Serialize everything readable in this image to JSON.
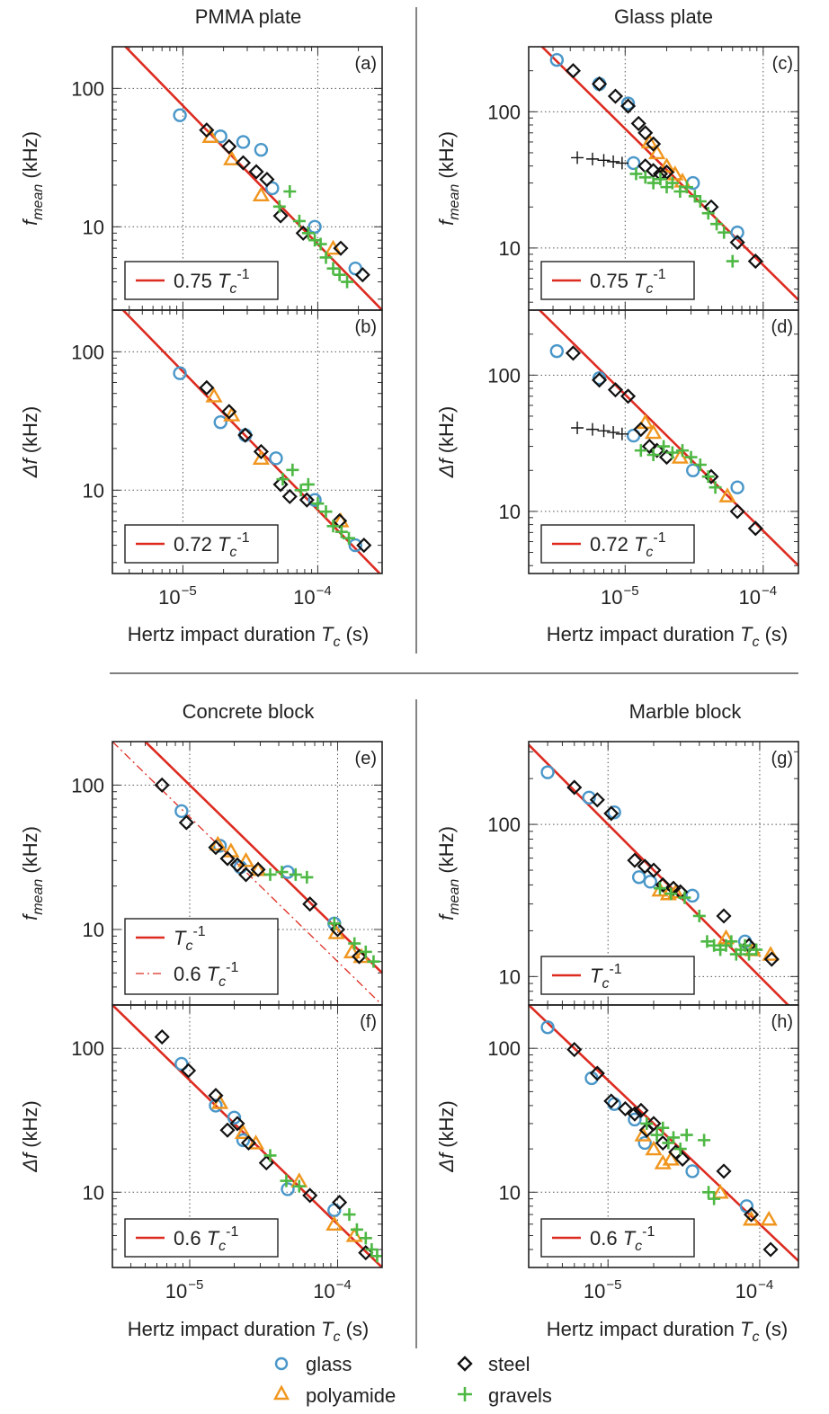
{
  "colors": {
    "glass": "#4a97c9",
    "polyamide": "#f0961e",
    "steel": "#111111",
    "gravels": "#4db843",
    "fit": "#dd2b20",
    "gravels_black": "#111111"
  },
  "figure": {
    "section_titles": [
      "PMMA plate",
      "Glass plate",
      "Concrete block",
      "Marble block"
    ],
    "x_axis_label": "Hertz impact duration",
    "x_axis_symbol": "T",
    "x_axis_subscript": "c",
    "x_axis_unit": "(s)",
    "x_tick_labels": [
      "10",
      "10"
    ],
    "x_tick_exponents": [
      "−5",
      "−4"
    ],
    "legend": {
      "glass": "glass",
      "polyamide": "polyamide",
      "steel": "steel",
      "gravels": "gravels"
    }
  },
  "chart_data": [
    {
      "type": "scatter",
      "panel": "(a)",
      "section": "PMMA plate",
      "ylabel_main": "f",
      "ylabel_sub": "mean",
      "ylabel_unit": "(kHz)",
      "xscale": "log",
      "yscale": "log",
      "xlim": [
        3e-06,
        0.0003
      ],
      "ylim": [
        2.5,
        200
      ],
      "y_ticks": [
        10,
        100
      ],
      "x_ticks": [
        1e-05,
        0.0001
      ],
      "grid": true,
      "fits": [
        {
          "coef": 0.75,
          "style": "solid",
          "label_coef": "0.75"
        }
      ],
      "series": [
        {
          "name": "glass",
          "x": [
            9.5e-06,
            1.9e-05,
            2.8e-05,
            3.8e-05,
            4.6e-05,
            9.5e-05,
            0.00019
          ],
          "y": [
            64,
            45,
            41,
            36,
            19,
            10,
            5
          ]
        },
        {
          "name": "polyamide",
          "x": [
            1.6e-05,
            2.3e-05,
            3.8e-05,
            0.00013
          ],
          "y": [
            45,
            31,
            17,
            7
          ]
        },
        {
          "name": "steel",
          "x": [
            1.5e-05,
            2.2e-05,
            2.8e-05,
            3.5e-05,
            4.2e-05,
            5.3e-05,
            7.8e-05,
            0.000148,
            0.000215
          ],
          "y": [
            50,
            38,
            29,
            25,
            22,
            12,
            9,
            7,
            4.5
          ]
        },
        {
          "name": "gravels",
          "x": [
            5.2e-05,
            6.2e-05,
            7.3e-05,
            8.5e-05,
            9.5e-05,
            0.000105,
            0.000115,
            0.00013,
            0.000145,
            0.000165
          ],
          "y": [
            14,
            18,
            11,
            9,
            8,
            7.5,
            6,
            5,
            4.5,
            4
          ]
        }
      ]
    },
    {
      "type": "scatter",
      "panel": "(b)",
      "section": "PMMA plate",
      "ylabel_main": "Δf",
      "ylabel_sub": "",
      "ylabel_unit": "(kHz)",
      "xscale": "log",
      "yscale": "log",
      "xlim": [
        3e-06,
        0.0003
      ],
      "ylim": [
        2.5,
        200
      ],
      "y_ticks": [
        10,
        100
      ],
      "x_ticks": [
        1e-05,
        0.0001
      ],
      "grid": true,
      "fits": [
        {
          "coef": 0.72,
          "style": "solid",
          "label_coef": "0.72"
        }
      ],
      "series": [
        {
          "name": "glass",
          "x": [
            9.5e-06,
            1.9e-05,
            2.9e-05,
            4.9e-05,
            9.5e-05,
            0.00019
          ],
          "y": [
            70,
            31,
            25,
            17,
            8.5,
            4
          ]
        },
        {
          "name": "polyamide",
          "x": [
            1.7e-05,
            2.3e-05,
            3.8e-05,
            0.000148
          ],
          "y": [
            48,
            35,
            17,
            6
          ]
        },
        {
          "name": "steel",
          "x": [
            1.5e-05,
            2.2e-05,
            2.9e-05,
            3.8e-05,
            5.3e-05,
            6.2e-05,
            8.3e-05,
            0.000145,
            0.00022
          ],
          "y": [
            55,
            37,
            25,
            19,
            11,
            9,
            8.5,
            6,
            4
          ]
        },
        {
          "name": "gravels",
          "x": [
            5.5e-05,
            6.5e-05,
            7.5e-05,
            8.5e-05,
            0.0001,
            0.000115,
            0.00013,
            0.00015,
            0.00017
          ],
          "y": [
            12,
            14,
            10,
            11,
            8,
            7,
            5.5,
            5,
            4.5
          ]
        }
      ]
    },
    {
      "type": "scatter",
      "panel": "(c)",
      "section": "Glass plate",
      "ylabel_main": "f",
      "ylabel_sub": "mean",
      "ylabel_unit": "(kHz)",
      "xscale": "log",
      "yscale": "log",
      "xlim": [
        2e-06,
        0.00018
      ],
      "ylim": [
        3.5,
        300
      ],
      "y_ticks": [
        10,
        100
      ],
      "x_ticks": [
        1e-05,
        0.0001
      ],
      "grid": true,
      "fits": [
        {
          "coef": 0.75,
          "style": "solid",
          "label_coef": "0.75"
        }
      ],
      "series": [
        {
          "name": "glass",
          "x": [
            3.2e-06,
            6.5e-06,
            1.05e-05,
            1.15e-05,
            3.1e-05,
            6.5e-05
          ],
          "y": [
            240,
            160,
            115,
            42,
            30,
            13
          ]
        },
        {
          "name": "polyamide",
          "x": [
            1.5e-05,
            1.7e-05,
            2e-05,
            2.3e-05,
            2.6e-05
          ],
          "y": [
            60,
            50,
            40,
            35,
            31
          ]
        },
        {
          "name": "steel",
          "x": [
            4.2e-06,
            6.5e-06,
            8.5e-06,
            1.05e-05,
            1.25e-05,
            1.4e-05,
            1.6e-05,
            1.4e-05,
            1.6e-05,
            1.8e-05,
            2e-05,
            4.2e-05,
            6.5e-05,
            8.8e-05
          ],
          "y": [
            200,
            160,
            130,
            110,
            82,
            70,
            58,
            40,
            37,
            35,
            36,
            20,
            11,
            8
          ]
        },
        {
          "name": "gravels",
          "x": [
            1.2e-05,
            1.4e-05,
            1.6e-05,
            1.8e-05,
            2e-05,
            2.2e-05,
            2.5e-05,
            2.8e-05,
            3.2e-05,
            3.5e-05,
            4e-05,
            4.6e-05,
            5.2e-05,
            6e-05
          ],
          "y": [
            35,
            33,
            30,
            32,
            28,
            30,
            26,
            28,
            24,
            22,
            18,
            15,
            13,
            8
          ]
        },
        {
          "name": "gravels_black",
          "x": [
            4.5e-06,
            5.8e-06,
            7e-06,
            8.2e-06,
            9.5e-06
          ],
          "y": [
            46,
            45,
            44,
            43,
            42
          ]
        }
      ]
    },
    {
      "type": "scatter",
      "panel": "(d)",
      "section": "Glass plate",
      "ylabel_main": "Δf",
      "ylabel_sub": "",
      "ylabel_unit": "(kHz)",
      "xscale": "log",
      "yscale": "log",
      "xlim": [
        2e-06,
        0.00018
      ],
      "ylim": [
        3.5,
        300
      ],
      "y_ticks": [
        10,
        100
      ],
      "x_ticks": [
        1e-05,
        0.0001
      ],
      "grid": true,
      "fits": [
        {
          "coef": 0.72,
          "style": "solid",
          "label_coef": "0.72"
        }
      ],
      "series": [
        {
          "name": "glass",
          "x": [
            3.2e-06,
            6.5e-06,
            1.15e-05,
            3.1e-05,
            6.5e-05
          ],
          "y": [
            150,
            95,
            36,
            20,
            15
          ]
        },
        {
          "name": "polyamide",
          "x": [
            1.4e-05,
            1.6e-05,
            2.5e-05,
            5.5e-05
          ],
          "y": [
            45,
            38,
            25,
            13
          ]
        },
        {
          "name": "steel",
          "x": [
            4.2e-06,
            6.5e-06,
            8.5e-06,
            1.05e-05,
            1.3e-05,
            1.5e-05,
            1.7e-05,
            2e-05,
            4.2e-05,
            6.5e-05,
            8.8e-05
          ],
          "y": [
            145,
            92,
            78,
            70,
            40,
            30,
            28,
            25,
            18,
            10,
            7.5
          ]
        },
        {
          "name": "gravels",
          "x": [
            1.3e-05,
            1.6e-05,
            1.9e-05,
            2.2e-05,
            2.6e-05,
            3e-05,
            3.5e-05,
            4e-05,
            4.5e-05
          ],
          "y": [
            28,
            26,
            30,
            27,
            28,
            25,
            22,
            18,
            15
          ]
        },
        {
          "name": "gravels_black",
          "x": [
            4.5e-06,
            5.8e-06,
            7e-06,
            8.2e-06,
            9.5e-06
          ],
          "y": [
            41,
            40,
            39,
            38,
            37
          ]
        }
      ]
    },
    {
      "type": "scatter",
      "panel": "(e)",
      "section": "Concrete block",
      "ylabel_main": "f",
      "ylabel_sub": "mean",
      "ylabel_unit": "(kHz)",
      "xscale": "log",
      "yscale": "log",
      "xlim": [
        3e-06,
        0.0002
      ],
      "ylim": [
        3,
        200
      ],
      "y_ticks": [
        10,
        100
      ],
      "x_ticks": [
        1e-05,
        0.0001
      ],
      "grid": true,
      "fits": [
        {
          "coef": 1.0,
          "style": "solid",
          "label_coef": ""
        },
        {
          "coef": 0.6,
          "style": "dashed",
          "label_coef": "0.6"
        }
      ],
      "series": [
        {
          "name": "glass",
          "x": [
            8.8e-06,
            1.6e-05,
            2.2e-05,
            4.6e-05,
            9.5e-05
          ],
          "y": [
            66,
            38,
            27,
            25,
            11
          ]
        },
        {
          "name": "polyamide",
          "x": [
            1.55e-05,
            1.9e-05,
            2.4e-05,
            2.9e-05,
            9.8e-05,
            0.000125,
            0.000145
          ],
          "y": [
            39,
            35,
            30,
            26,
            9.5,
            7,
            6.5
          ]
        },
        {
          "name": "steel",
          "x": [
            6.5e-06,
            9.5e-06,
            1.5e-05,
            1.8e-05,
            2.1e-05,
            2.4e-05,
            2.9e-05,
            6.5e-05,
            0.0001,
            0.00014
          ],
          "y": [
            100,
            55,
            37,
            31,
            28,
            24,
            26,
            15,
            10,
            6.5
          ]
        },
        {
          "name": "gravels",
          "x": [
            3.5e-05,
            4.2e-05,
            5.2e-05,
            6.2e-05,
            9.5e-05,
            0.00013,
            0.000155,
            0.000175
          ],
          "y": [
            24,
            25,
            24,
            23,
            11,
            8,
            7,
            6
          ]
        }
      ]
    },
    {
      "type": "scatter",
      "panel": "(f)",
      "section": "Concrete block",
      "ylabel_main": "Δf",
      "ylabel_sub": "",
      "ylabel_unit": "(kHz)",
      "xscale": "log",
      "yscale": "log",
      "xlim": [
        3e-06,
        0.0002
      ],
      "ylim": [
        3,
        200
      ],
      "y_ticks": [
        10,
        100
      ],
      "x_ticks": [
        1e-05,
        0.0001
      ],
      "grid": true,
      "fits": [
        {
          "coef": 0.6,
          "style": "solid",
          "label_coef": "0.6"
        }
      ],
      "series": [
        {
          "name": "glass",
          "x": [
            8.8e-06,
            1.5e-05,
            2e-05,
            2.3e-05,
            4.6e-05,
            9.5e-05
          ],
          "y": [
            78,
            40,
            33,
            23,
            10.5,
            7.5
          ]
        },
        {
          "name": "polyamide",
          "x": [
            1.6e-05,
            2.3e-05,
            2.8e-05,
            5.5e-05,
            9.5e-05,
            0.00013
          ],
          "y": [
            42,
            26,
            22,
            12,
            6,
            5
          ]
        },
        {
          "name": "steel",
          "x": [
            6.5e-06,
            9.8e-06,
            1.5e-05,
            1.8e-05,
            2.1e-05,
            2.5e-05,
            3.3e-05,
            6.5e-05,
            0.000103,
            0.000155
          ],
          "y": [
            120,
            70,
            47,
            27,
            30,
            22,
            16,
            9.5,
            8.5,
            3.8
          ]
        },
        {
          "name": "gravels",
          "x": [
            3.5e-05,
            4.5e-05,
            5.5e-05,
            0.00012,
            0.000135,
            0.000155,
            0.00017,
            0.000185
          ],
          "y": [
            18,
            12,
            11,
            7,
            5.5,
            4.8,
            4,
            3.6
          ]
        }
      ]
    },
    {
      "type": "scatter",
      "panel": "(g)",
      "section": "Marble block",
      "ylabel_main": "f",
      "ylabel_sub": "mean",
      "ylabel_unit": "(kHz)",
      "xscale": "log",
      "yscale": "log",
      "xlim": [
        3e-06,
        0.00018
      ],
      "ylim": [
        6.5,
        350
      ],
      "y_ticks": [
        10,
        100
      ],
      "x_ticks": [
        1e-05,
        0.0001
      ],
      "grid": true,
      "fits": [
        {
          "coef": 1.0,
          "style": "solid",
          "label_coef": ""
        }
      ],
      "series": [
        {
          "name": "glass",
          "x": [
            4e-06,
            7.5e-06,
            1.1e-05,
            1.6e-05,
            1.9e-05,
            3.6e-05,
            8e-05
          ],
          "y": [
            220,
            150,
            120,
            45,
            42,
            34,
            17
          ]
        },
        {
          "name": "polyamide",
          "x": [
            2.2e-05,
            2.5e-05,
            2.8e-05,
            6e-05,
            9e-05,
            0.000118
          ],
          "y": [
            37,
            35,
            36,
            18,
            15,
            14
          ]
        },
        {
          "name": "steel",
          "x": [
            6e-06,
            8.5e-06,
            1.05e-05,
            1.5e-05,
            1.75e-05,
            2e-05,
            2.3e-05,
            2.7e-05,
            3e-05,
            5.8e-05,
            8.5e-05,
            0.00012
          ],
          "y": [
            175,
            145,
            118,
            58,
            53,
            50,
            40,
            38,
            36,
            25,
            16,
            13
          ]
        },
        {
          "name": "gravels",
          "x": [
            2.2e-05,
            2.6e-05,
            3.2e-05,
            4e-05,
            4.5e-05,
            5e-05,
            5.5e-05,
            6e-05,
            6.5e-05,
            7e-05,
            7.5e-05,
            8e-05,
            8.5e-05,
            9.5e-05
          ],
          "y": [
            38,
            35,
            33,
            25,
            17,
            16,
            15,
            16,
            17,
            14,
            15,
            16,
            14,
            15
          ]
        }
      ]
    },
    {
      "type": "scatter",
      "panel": "(h)",
      "section": "Marble block",
      "ylabel_main": "Δf",
      "ylabel_sub": "",
      "ylabel_unit": "(kHz)",
      "xscale": "log",
      "yscale": "log",
      "xlim": [
        3e-06,
        0.00018
      ],
      "ylim": [
        3,
        200
      ],
      "y_ticks": [
        10,
        100
      ],
      "x_ticks": [
        1e-05,
        0.0001
      ],
      "grid": true,
      "fits": [
        {
          "coef": 0.6,
          "style": "solid",
          "label_coef": "0.6"
        }
      ],
      "series": [
        {
          "name": "glass",
          "x": [
            4e-06,
            7.8e-06,
            1.1e-05,
            1.5e-05,
            1.75e-05,
            3.6e-05,
            8.2e-05
          ],
          "y": [
            140,
            62,
            41,
            32,
            22,
            14,
            8
          ]
        },
        {
          "name": "polyamide",
          "x": [
            1.7e-05,
            2e-05,
            2.3e-05,
            2.6e-05,
            5.5e-05,
            8.8e-05,
            0.000115
          ],
          "y": [
            25,
            20,
            16,
            17,
            10,
            6.5,
            6.5
          ]
        },
        {
          "name": "steel",
          "x": [
            6e-06,
            8.5e-06,
            1.05e-05,
            1.3e-05,
            1.5e-05,
            1.65e-05,
            1.8e-05,
            2e-05,
            2.3e-05,
            2.8e-05,
            3.1e-05,
            5.8e-05,
            8.8e-05,
            0.000118
          ],
          "y": [
            98,
            67,
            43,
            38,
            35,
            37,
            27,
            30,
            22,
            19,
            17,
            14,
            7,
            4
          ]
        },
        {
          "name": "gravels",
          "x": [
            1.8e-05,
            2.1e-05,
            2.3e-05,
            2.5e-05,
            2.7e-05,
            3e-05,
            3.3e-05,
            4.3e-05,
            4.6e-05,
            5e-05
          ],
          "y": [
            30,
            25,
            28,
            22,
            24,
            20,
            25,
            23,
            10,
            9
          ]
        }
      ]
    }
  ]
}
